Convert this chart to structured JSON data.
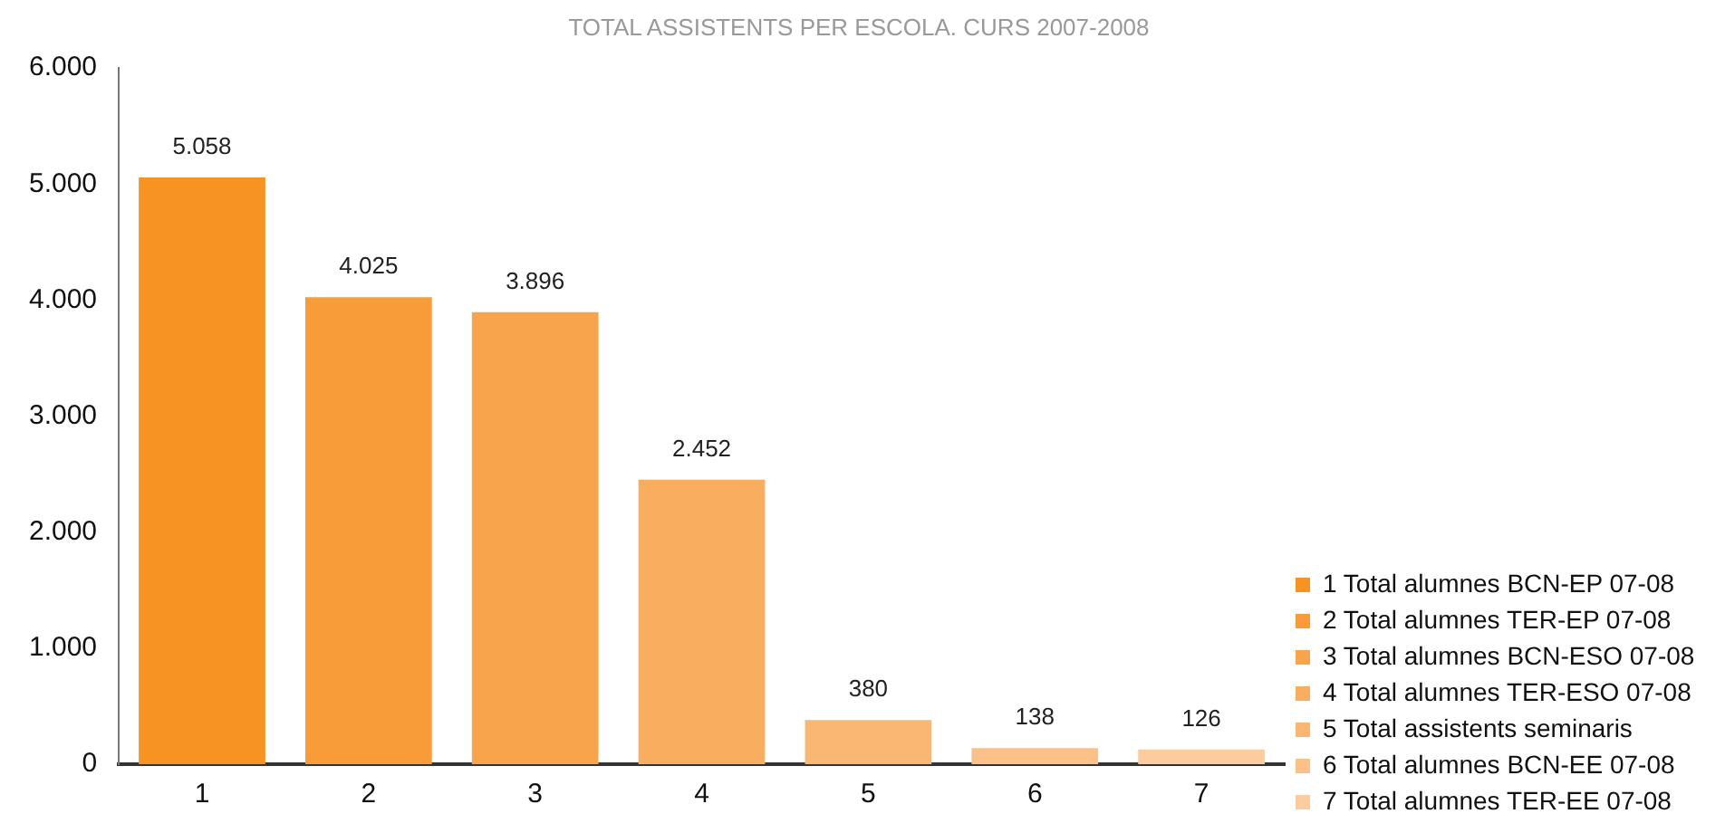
{
  "chart_data": {
    "type": "bar",
    "title": "TOTAL ASSISTENTS PER ESCOLA. CURS 2007-2008",
    "categories": [
      "1",
      "2",
      "3",
      "4",
      "5",
      "6",
      "7"
    ],
    "series": [
      {
        "name": "1 Total alumnes BCN-EP 07-08",
        "color": "#f69322",
        "values": [
          5058,
          null,
          null,
          null,
          null,
          null,
          null
        ],
        "value_labels": [
          "5.058",
          null,
          null,
          null,
          null,
          null,
          null
        ]
      },
      {
        "name": "2 Total alumnes TER-EP 07-08",
        "color": "#f79c39",
        "values": [
          null,
          4025,
          null,
          null,
          null,
          null,
          null
        ],
        "value_labels": [
          null,
          "4.025",
          null,
          null,
          null,
          null,
          null
        ]
      },
      {
        "name": "3 Total alumnes BCN-ESO 07-08",
        "color": "#f8a44c",
        "values": [
          null,
          null,
          3896,
          null,
          null,
          null,
          null
        ],
        "value_labels": [
          null,
          null,
          "3.896",
          null,
          null,
          null,
          null
        ]
      },
      {
        "name": "4 Total alumnes TER-ESO 07-08",
        "color": "#f9ad5f",
        "values": [
          null,
          null,
          null,
          2452,
          null,
          null,
          null
        ],
        "value_labels": [
          null,
          null,
          null,
          "2.452",
          null,
          null,
          null
        ]
      },
      {
        "name": "5 Total assistents seminaris",
        "color": "#fab774",
        "values": [
          null,
          null,
          null,
          null,
          380,
          null,
          null
        ],
        "value_labels": [
          null,
          null,
          null,
          null,
          "380",
          null,
          null
        ]
      },
      {
        "name": "6 Total alumnes BCN-EE 07-08",
        "color": "#fbc189",
        "values": [
          null,
          null,
          null,
          null,
          null,
          138,
          null
        ],
        "value_labels": [
          null,
          null,
          null,
          null,
          null,
          "138",
          null
        ]
      },
      {
        "name": "7 Total alumnes TER-EE 07-08",
        "color": "#fccc9f",
        "values": [
          null,
          null,
          null,
          null,
          null,
          null,
          126
        ],
        "value_labels": [
          null,
          null,
          null,
          null,
          null,
          null,
          "126"
        ]
      }
    ],
    "ylim": [
      0,
      6000
    ],
    "yticks": [
      0,
      {
        "value": 1000,
        "label": "1.000"
      },
      {
        "value": 2000,
        "label": "2.000"
      },
      {
        "value": 3000,
        "label": "3.000"
      },
      {
        "value": 4000,
        "label": "4.000"
      },
      {
        "value": 5000,
        "label": "5.000"
      },
      {
        "value": 6000,
        "label": "6.000"
      }
    ],
    "grid": false,
    "legend": "bottom right"
  }
}
